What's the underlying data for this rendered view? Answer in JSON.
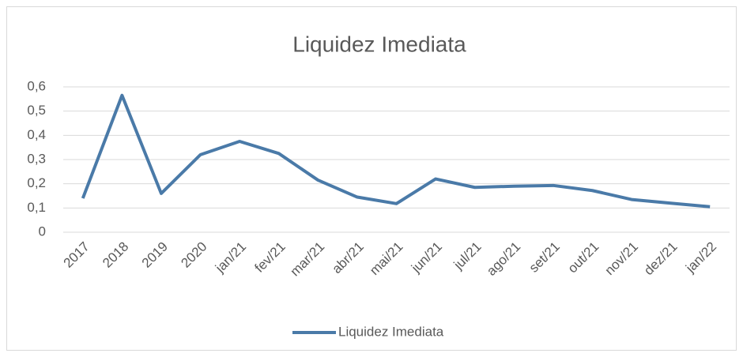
{
  "chart_data": {
    "type": "line",
    "title": "Liquidez Imediata",
    "categories": [
      "2017",
      "2018",
      "2019",
      "2020",
      "jan/21",
      "fev/21",
      "mar/21",
      "abr/21",
      "mai/21",
      "jun/21",
      "jul/21",
      "ago/21",
      "set/21",
      "out/21",
      "nov/21",
      "dez/21",
      "jan/22"
    ],
    "series": [
      {
        "name": "Liquidez Imediata",
        "color": "#4a7aa8",
        "values": [
          0.14,
          0.565,
          0.16,
          0.32,
          0.375,
          0.325,
          0.215,
          0.145,
          0.118,
          0.22,
          0.185,
          0.19,
          0.193,
          0.172,
          0.135,
          0.12,
          0.105
        ]
      }
    ],
    "ylim": [
      0,
      0.6
    ],
    "yticks": [
      0,
      {
        "value": 0.1,
        "label": "0,1"
      },
      {
        "value": 0.2,
        "label": "0,2"
      },
      {
        "value": 0.3,
        "label": "0,3"
      },
      {
        "value": 0.4,
        "label": "0,4"
      },
      {
        "value": 0.5,
        "label": "0,5"
      },
      {
        "value": 0.6,
        "label": "0,6"
      }
    ],
    "grid": true,
    "legend": "bottom"
  }
}
